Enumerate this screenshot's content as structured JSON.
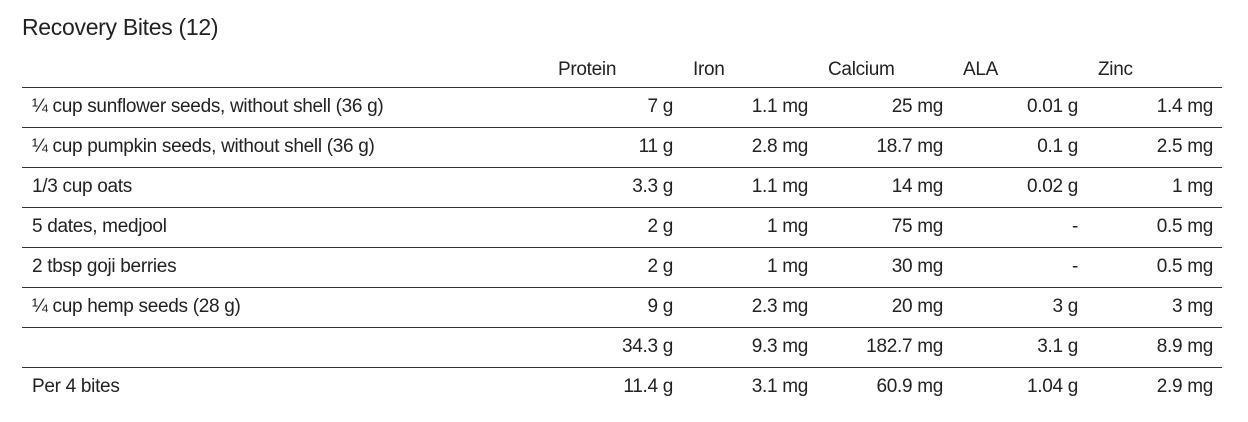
{
  "title": "Recovery Bites (12)",
  "table": {
    "header": [
      "Protein",
      "Iron",
      "Calcium",
      "ALA",
      "Zinc"
    ],
    "rows": [
      {
        "label": "¼ cup sunflower seeds, without shell (36 g)",
        "cells": [
          "7 g",
          "1.1 mg",
          "25 mg",
          "0.01 g",
          "1.4 mg"
        ]
      },
      {
        "label": "¼ cup pumpkin seeds, without shell (36 g)",
        "cells": [
          "11 g",
          "2.8 mg",
          "18.7 mg",
          "0.1 g",
          "2.5 mg"
        ]
      },
      {
        "label": "1/3 cup oats",
        "cells": [
          "3.3 g",
          "1.1 mg",
          "14 mg",
          "0.02 g",
          "1 mg"
        ]
      },
      {
        "label": "5 dates, medjool",
        "cells": [
          "2 g",
          "1 mg",
          "75 mg",
          "-",
          "0.5 mg"
        ]
      },
      {
        "label": "2 tbsp goji berries",
        "cells": [
          "2 g",
          "1 mg",
          "30 mg",
          "-",
          "0.5 mg"
        ]
      },
      {
        "label": "¼ cup hemp seeds (28 g)",
        "cells": [
          "9 g",
          "2.3 mg",
          "20 mg",
          "3 g",
          "3 mg"
        ]
      },
      {
        "cells": [
          "34.3 g",
          "9.3 mg",
          "182.7 mg",
          "3.1 g",
          "8.9 mg"
        ]
      },
      {
        "label": "Per 4 bites",
        "cells": [
          "11.4 g",
          "3.1 mg",
          "60.9 mg",
          "1.04 g",
          "2.9 mg"
        ]
      }
    ]
  }
}
